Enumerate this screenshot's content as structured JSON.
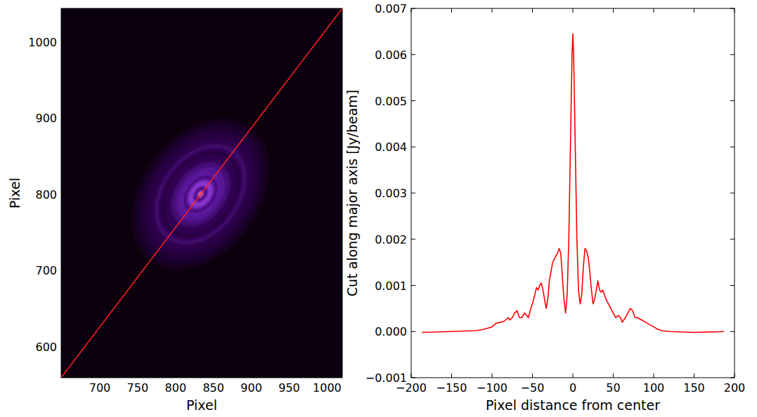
{
  "chart_data": [
    {
      "type": "image",
      "xlabel": "Pixel",
      "ylabel": "Pixel",
      "xlim": [
        649,
        1020
      ],
      "ylim": [
        559,
        1044
      ],
      "xticks": [
        700,
        750,
        800,
        850,
        900,
        950,
        1000
      ],
      "yticks": [
        600,
        700,
        800,
        900,
        1000
      ],
      "center": [
        833,
        800
      ],
      "axis_ratio": 0.7,
      "line": {
        "x": [
          649,
          1020
        ],
        "y": [
          559,
          1044
        ],
        "color": "#ff2020"
      }
    },
    {
      "type": "line",
      "xlabel": "Pixel distance from center",
      "ylabel": "Cut along major axis [Jy/beam]",
      "x": [
        -187,
        -150,
        -120,
        -110,
        -100,
        -95,
        -90,
        -85,
        -80,
        -78,
        -75,
        -72,
        -69,
        -66,
        -63,
        -60,
        -57,
        -55,
        -52,
        -50,
        -47,
        -45,
        -43,
        -41,
        -39,
        -37,
        -35,
        -33,
        -31,
        -29,
        -27,
        -25,
        -22,
        -19,
        -17,
        -15,
        -13,
        -11,
        -9,
        -7,
        -5,
        -3,
        -1,
        0,
        1,
        3,
        5,
        7,
        9,
        11,
        13,
        15,
        17,
        19,
        21,
        23,
        25,
        27,
        29,
        31,
        33,
        35,
        37,
        39,
        41,
        44,
        47,
        50,
        53,
        56,
        59,
        61,
        63,
        65,
        68,
        71,
        74,
        77,
        80,
        85,
        90,
        95,
        100,
        105,
        110,
        120,
        150,
        187
      ],
      "values": [
        -2e-05,
        0.0,
        2e-05,
        5e-05,
        0.0001,
        0.00018,
        0.0002,
        0.00022,
        0.0003,
        0.00025,
        0.0003,
        0.0004,
        0.00045,
        0.0003,
        0.0003,
        0.0004,
        0.00035,
        0.0003,
        0.0005,
        0.0006,
        0.0008,
        0.00095,
        0.0009,
        0.001,
        0.00105,
        0.0009,
        0.0007,
        0.0005,
        0.0007,
        0.0011,
        0.0013,
        0.0015,
        0.0016,
        0.0017,
        0.0018,
        0.0017,
        0.0012,
        0.0007,
        0.0004,
        0.0008,
        0.002,
        0.004,
        0.006,
        0.00645,
        0.006,
        0.004,
        0.002,
        0.0009,
        0.0006,
        0.0008,
        0.0014,
        0.0018,
        0.00175,
        0.0016,
        0.0013,
        0.0009,
        0.0006,
        0.0007,
        0.0009,
        0.0011,
        0.0009,
        0.00085,
        0.0009,
        0.0008,
        0.0007,
        0.0006,
        0.0005,
        0.0004,
        0.0003,
        0.00035,
        0.0003,
        0.0002,
        0.00025,
        0.0003,
        0.0004,
        0.0005,
        0.00045,
        0.0003,
        0.0003,
        0.00025,
        0.0002,
        0.00015,
        0.0001,
        5e-05,
        2e-05,
        0.0,
        -2e-05,
        0.0
      ],
      "color": "#ff0000",
      "xlim": [
        -200,
        200
      ],
      "ylim": [
        -0.001,
        0.007
      ],
      "xticks": [
        {
          "value": -200,
          "label": "−200"
        },
        {
          "value": -150,
          "label": "−150"
        },
        {
          "value": -100,
          "label": "−100"
        },
        {
          "value": -50,
          "label": "−50"
        },
        0,
        50,
        100,
        150,
        200
      ],
      "yticks": [
        {
          "value": -0.001,
          "label": "−0.001"
        },
        {
          "value": 0,
          "label": "0.000"
        },
        {
          "value": 0.001,
          "label": "0.001"
        },
        {
          "value": 0.002,
          "label": "0.002"
        },
        {
          "value": 0.003,
          "label": "0.003"
        },
        {
          "value": 0.004,
          "label": "0.004"
        },
        {
          "value": 0.005,
          "label": "0.005"
        },
        {
          "value": 0.006,
          "label": "0.006"
        },
        {
          "value": 0.007,
          "label": "0.007"
        }
      ]
    }
  ]
}
